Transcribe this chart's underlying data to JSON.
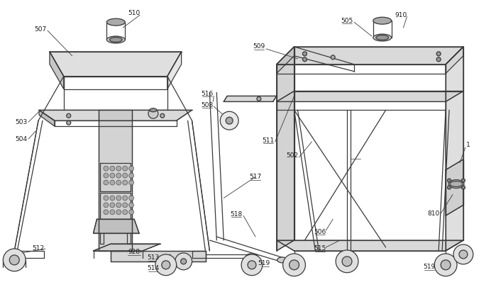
{
  "background_color": "#ffffff",
  "line_color": "#3a3a3a",
  "label_color": "#1a1a1a",
  "figsize": [
    6.99,
    4.05
  ],
  "dpi": 100,
  "lw": 0.9
}
